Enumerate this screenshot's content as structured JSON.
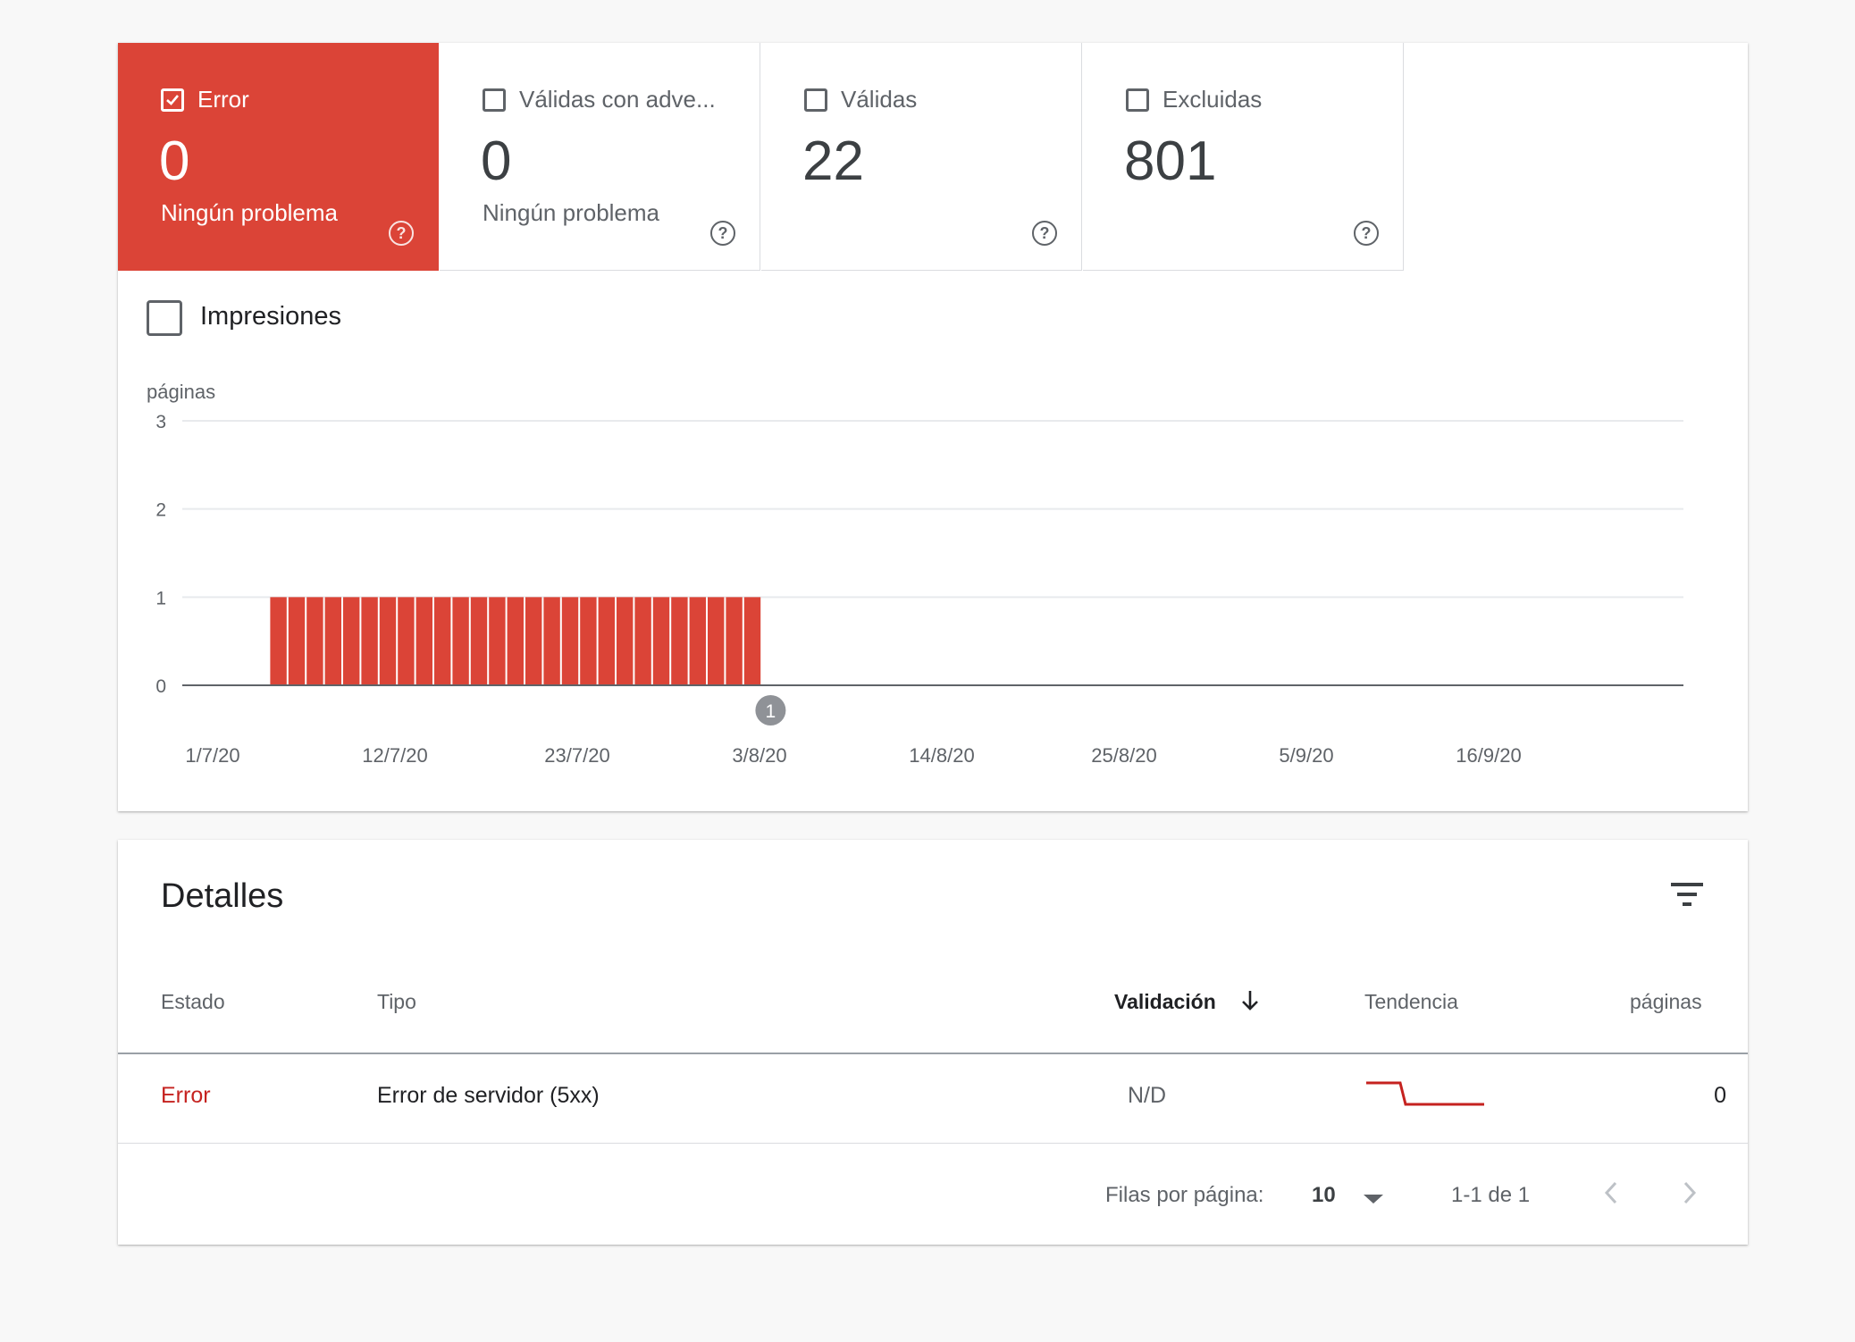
{
  "summary": {
    "tiles": [
      {
        "label": "Error",
        "count": "0",
        "sub": "Ningún problema",
        "checked": true
      },
      {
        "label": "Válidas con adve...",
        "count": "0",
        "sub": "Ningún problema",
        "checked": false
      },
      {
        "label": "Válidas",
        "count": "22",
        "sub": "",
        "checked": false
      },
      {
        "label": "Excluidas",
        "count": "801",
        "sub": "",
        "checked": false
      }
    ],
    "help_glyph": "?"
  },
  "impressions": {
    "label": "Impresiones",
    "checked": false
  },
  "chart_data": {
    "type": "bar",
    "ylabel": "páginas",
    "ylim": [
      0,
      3
    ],
    "yticks": [
      "0",
      "1",
      "2",
      "3"
    ],
    "xticks": [
      "1/7/20",
      "12/7/20",
      "23/7/20",
      "3/8/20",
      "14/8/20",
      "25/8/20",
      "5/9/20",
      "16/9/20"
    ],
    "x_start": "2020-07-01",
    "x_end": "2020-09-27",
    "series": [
      {
        "color": "#db4437",
        "dates": [
          "2020-07-05",
          "2020-07-06",
          "2020-07-07",
          "2020-07-08",
          "2020-07-09",
          "2020-07-10",
          "2020-07-11",
          "2020-07-12",
          "2020-07-13",
          "2020-07-14",
          "2020-07-15",
          "2020-07-16",
          "2020-07-17",
          "2020-07-18",
          "2020-07-19",
          "2020-07-20",
          "2020-07-21",
          "2020-07-22",
          "2020-07-23",
          "2020-07-24",
          "2020-07-25",
          "2020-07-26",
          "2020-07-27",
          "2020-07-28",
          "2020-07-29",
          "2020-07-30",
          "2020-07-31"
        ],
        "values": [
          1,
          1,
          1,
          1,
          1,
          1,
          1,
          1,
          1,
          1,
          1,
          1,
          1,
          1,
          1,
          1,
          1,
          1,
          1,
          1,
          1,
          1,
          1,
          1,
          1,
          1,
          1
        ]
      }
    ],
    "annotations": [
      {
        "date": "2020-08-01",
        "label": "1"
      }
    ],
    "grid": true
  },
  "details": {
    "title": "Detalles",
    "columns": {
      "estado": "Estado",
      "tipo": "Tipo",
      "validacion": "Validación",
      "tendencia": "Tendencia",
      "paginas": "páginas"
    },
    "rows": [
      {
        "estado": "Error",
        "tipo": "Error de servidor (5xx)",
        "validacion": "N/D",
        "paginas": "0"
      }
    ],
    "footer": {
      "rows_label": "Filas por página:",
      "rows_value": "10",
      "range": "1-1 de 1"
    }
  },
  "colors": {
    "error": "#db4437",
    "error_text": "#c5221f"
  }
}
